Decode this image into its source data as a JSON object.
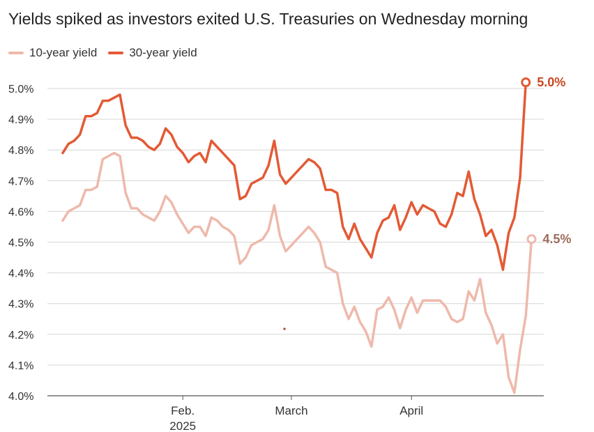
{
  "chart_data": {
    "type": "line",
    "title": "Yields spiked as investors exited U.S. Treasuries on Wednesday morning",
    "xlabel": "",
    "ylabel": "",
    "ylim": [
      4.0,
      5.0
    ],
    "y_ticks": [
      "4.0%",
      "4.1%",
      "4.2%",
      "4.3%",
      "4.4%",
      "4.5%",
      "4.6%",
      "4.7%",
      "4.8%",
      "4.9%",
      "5.0%"
    ],
    "x_ticks": [
      {
        "label": "Feb.",
        "sublabel": "2025",
        "date_index": 21
      },
      {
        "label": "March",
        "sublabel": "",
        "date_index": 40
      },
      {
        "label": "April",
        "sublabel": "",
        "date_index": 61
      }
    ],
    "legend_position": "top-left",
    "series": [
      {
        "name": "10-year yield",
        "color": "#eeb9ab",
        "end_label": "4.5%",
        "end_label_color": "#9c6c5e",
        "values": [
          [
            0,
            4.57
          ],
          [
            1,
            4.6
          ],
          [
            2,
            4.61
          ],
          [
            3,
            4.62
          ],
          [
            4,
            4.67
          ],
          [
            5,
            4.67
          ],
          [
            6,
            4.68
          ],
          [
            7,
            4.77
          ],
          [
            8,
            4.78
          ],
          [
            9,
            4.79
          ],
          [
            10,
            4.78
          ],
          [
            11,
            4.66
          ],
          [
            12,
            4.61
          ],
          [
            13,
            4.61
          ],
          [
            14,
            4.59
          ],
          [
            15,
            4.58
          ],
          [
            16,
            4.57
          ],
          [
            17,
            4.6
          ],
          [
            18,
            4.65
          ],
          [
            19,
            4.63
          ],
          [
            20,
            4.59
          ],
          [
            21,
            4.56
          ],
          [
            22,
            4.53
          ],
          [
            23,
            4.55
          ],
          [
            24,
            4.55
          ],
          [
            25,
            4.52
          ],
          [
            26,
            4.58
          ],
          [
            27,
            4.57
          ],
          [
            28,
            4.55
          ],
          [
            29,
            4.54
          ],
          [
            30,
            4.52
          ],
          [
            31,
            4.43
          ],
          [
            32,
            4.45
          ],
          [
            33,
            4.49
          ],
          [
            34,
            4.5
          ],
          [
            35,
            4.51
          ],
          [
            36,
            4.54
          ],
          [
            37,
            4.62
          ],
          [
            38,
            4.52
          ],
          [
            39,
            4.47
          ],
          [
            40,
            4.49
          ],
          [
            41,
            4.51
          ],
          [
            42,
            4.53
          ],
          [
            43,
            4.55
          ],
          [
            44,
            4.53
          ],
          [
            45,
            4.5
          ],
          [
            46,
            4.42
          ],
          [
            47,
            4.41
          ],
          [
            48,
            4.4
          ],
          [
            49,
            4.3
          ],
          [
            50,
            4.25
          ],
          [
            51,
            4.29
          ],
          [
            52,
            4.24
          ],
          [
            53,
            4.21
          ],
          [
            54,
            4.16
          ],
          [
            55,
            4.28
          ],
          [
            56,
            4.29
          ],
          [
            57,
            4.32
          ],
          [
            58,
            4.28
          ],
          [
            59,
            4.22
          ],
          [
            60,
            4.28
          ],
          [
            61,
            4.32
          ],
          [
            62,
            4.27
          ],
          [
            63,
            4.31
          ],
          [
            64,
            4.31
          ],
          [
            65,
            4.31
          ],
          [
            66,
            4.31
          ],
          [
            67,
            4.29
          ],
          [
            68,
            4.25
          ],
          [
            69,
            4.24
          ],
          [
            70,
            4.25
          ],
          [
            71,
            4.34
          ],
          [
            72,
            4.31
          ],
          [
            73,
            4.38
          ],
          [
            74,
            4.27
          ],
          [
            75,
            4.23
          ],
          [
            76,
            4.17
          ],
          [
            77,
            4.2
          ],
          [
            78,
            4.06
          ],
          [
            79,
            4.01
          ],
          [
            80,
            4.15
          ],
          [
            81,
            4.26
          ],
          [
            82,
            4.51
          ]
        ]
      },
      {
        "name": "30-year yield",
        "color": "#e35a35",
        "end_label": "5.0%",
        "end_label_color": "#c9471f",
        "values": [
          [
            0,
            4.79
          ],
          [
            1,
            4.82
          ],
          [
            2,
            4.83
          ],
          [
            3,
            4.85
          ],
          [
            4,
            4.91
          ],
          [
            5,
            4.91
          ],
          [
            6,
            4.92
          ],
          [
            7,
            4.96
          ],
          [
            8,
            4.96
          ],
          [
            9,
            4.97
          ],
          [
            10,
            4.98
          ],
          [
            11,
            4.88
          ],
          [
            12,
            4.84
          ],
          [
            13,
            4.84
          ],
          [
            14,
            4.83
          ],
          [
            15,
            4.81
          ],
          [
            16,
            4.8
          ],
          [
            17,
            4.82
          ],
          [
            18,
            4.87
          ],
          [
            19,
            4.85
          ],
          [
            20,
            4.81
          ],
          [
            21,
            4.79
          ],
          [
            22,
            4.76
          ],
          [
            23,
            4.78
          ],
          [
            24,
            4.79
          ],
          [
            25,
            4.76
          ],
          [
            26,
            4.83
          ],
          [
            27,
            4.81
          ],
          [
            28,
            4.79
          ],
          [
            29,
            4.77
          ],
          [
            30,
            4.75
          ],
          [
            31,
            4.64
          ],
          [
            32,
            4.65
          ],
          [
            33,
            4.69
          ],
          [
            34,
            4.7
          ],
          [
            35,
            4.71
          ],
          [
            36,
            4.75
          ],
          [
            37,
            4.83
          ],
          [
            38,
            4.72
          ],
          [
            39,
            4.69
          ],
          [
            40,
            4.71
          ],
          [
            41,
            4.73
          ],
          [
            42,
            4.75
          ],
          [
            43,
            4.77
          ],
          [
            44,
            4.76
          ],
          [
            45,
            4.74
          ],
          [
            46,
            4.67
          ],
          [
            47,
            4.67
          ],
          [
            48,
            4.66
          ],
          [
            49,
            4.55
          ],
          [
            50,
            4.51
          ],
          [
            51,
            4.56
          ],
          [
            52,
            4.51
          ],
          [
            53,
            4.48
          ],
          [
            54,
            4.45
          ],
          [
            55,
            4.53
          ],
          [
            56,
            4.57
          ],
          [
            57,
            4.58
          ],
          [
            58,
            4.62
          ],
          [
            59,
            4.54
          ],
          [
            60,
            4.58
          ],
          [
            61,
            4.63
          ],
          [
            62,
            4.59
          ],
          [
            63,
            4.62
          ],
          [
            64,
            4.61
          ],
          [
            65,
            4.6
          ],
          [
            66,
            4.56
          ],
          [
            67,
            4.55
          ],
          [
            68,
            4.59
          ],
          [
            69,
            4.66
          ],
          [
            70,
            4.65
          ],
          [
            71,
            4.73
          ],
          [
            72,
            4.64
          ],
          [
            73,
            4.59
          ],
          [
            74,
            4.52
          ],
          [
            75,
            4.54
          ],
          [
            76,
            4.49
          ],
          [
            77,
            4.41
          ],
          [
            78,
            4.53
          ],
          [
            79,
            4.58
          ],
          [
            80,
            4.71
          ],
          [
            81,
            5.02
          ]
        ]
      }
    ]
  },
  "legend": {
    "items": [
      {
        "label": "10-year yield",
        "color": "#eeb9ab"
      },
      {
        "label": "30-year yield",
        "color": "#e35a35"
      }
    ]
  },
  "colors": {
    "gridline": "#d6d6d6",
    "axis": "#555555",
    "stray_dot": "#c0391b"
  }
}
